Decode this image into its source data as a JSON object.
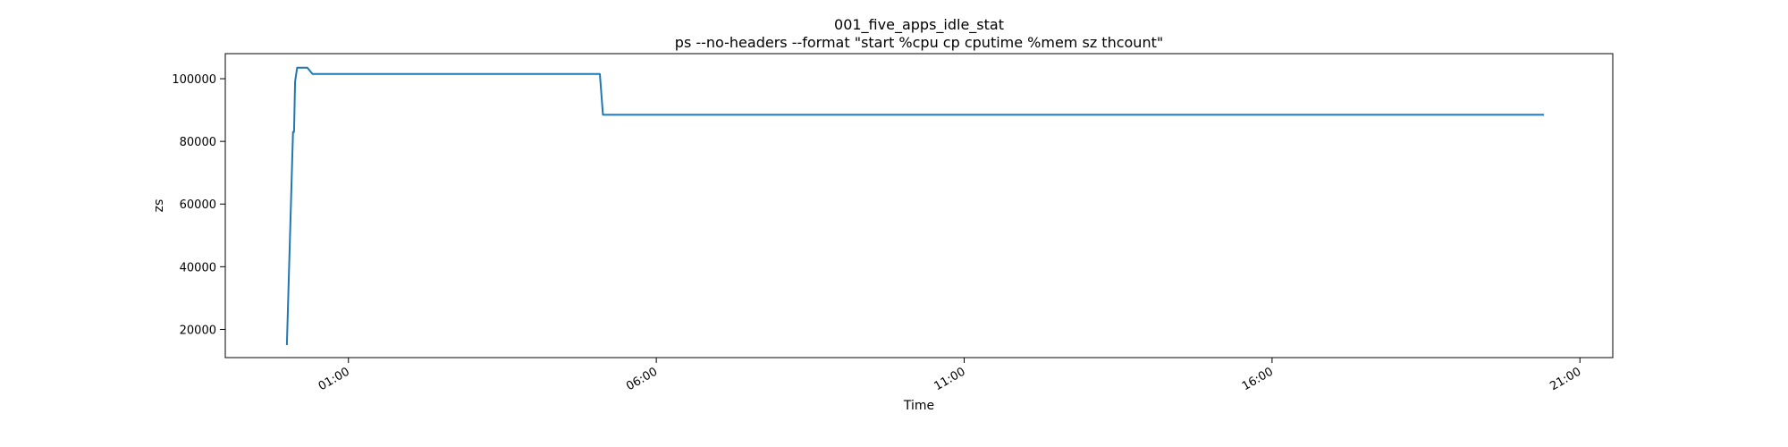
{
  "chart_data": {
    "type": "line",
    "title": "001_five_apps_idle_stat",
    "subtitle": "ps --no-headers --format \"start %cpu cp cputime %mem sz thcount\"",
    "xlabel": "Time",
    "ylabel": "sz",
    "xlim": [
      "23:00",
      "21:32"
    ],
    "ylim": [
      11000,
      108000
    ],
    "x_ticks": [
      "01:00",
      "06:00",
      "11:00",
      "16:00",
      "21:00"
    ],
    "y_ticks": [
      20000,
      40000,
      60000,
      80000,
      100000
    ],
    "grid": false,
    "series": [
      {
        "color": "#1f77b4",
        "x": [
          "00:00",
          "00:06",
          "00:07",
          "00:08",
          "00:10",
          "00:12",
          "00:20",
          "00:25",
          "05:05",
          "05:08",
          "20:25"
        ],
        "y": [
          15000,
          83000,
          83000,
          99000,
          103500,
          103500,
          103500,
          101500,
          101500,
          88500,
          88500
        ]
      }
    ]
  }
}
